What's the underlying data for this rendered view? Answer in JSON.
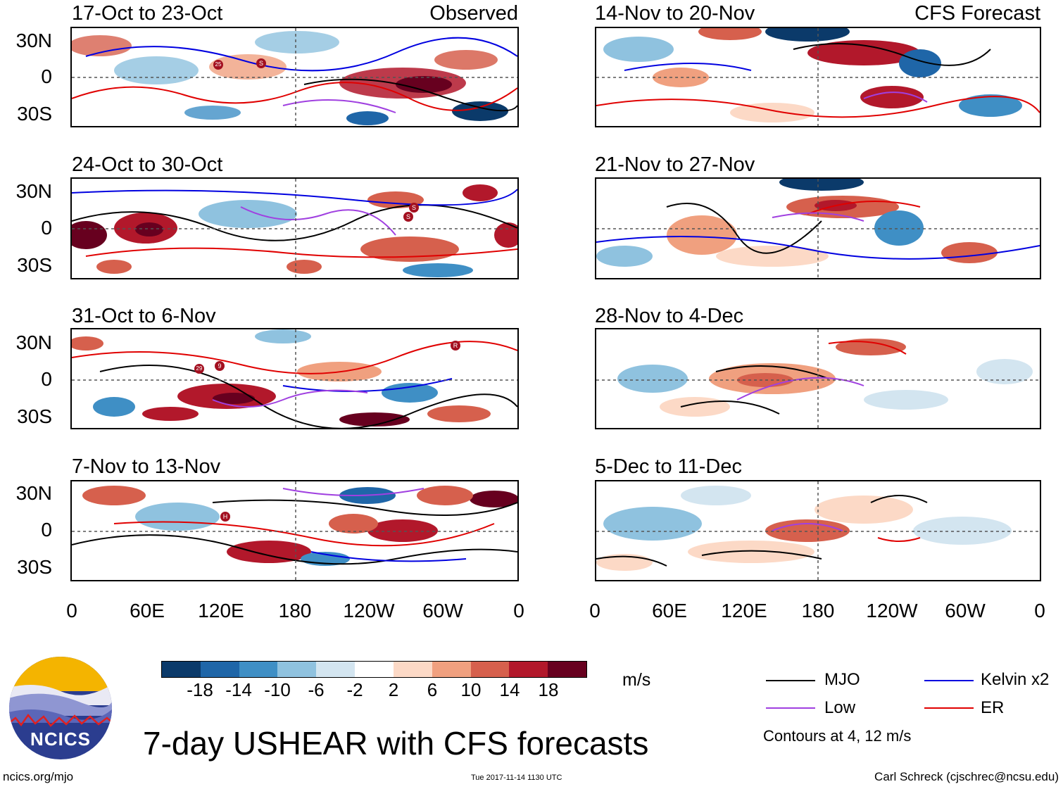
{
  "figure": {
    "title": "7-day USHEAR with CFS forecasts",
    "units": "m/s",
    "logo_text": "NCICS",
    "website": "ncics.org/mjo",
    "timestamp": "Tue 2017-11-14 1130 UTC",
    "author": "Carl Schreck (cjschrec@ncsu.edu)"
  },
  "columns": {
    "left": {
      "label": "Observed"
    },
    "right": {
      "label": "CFS Forecast"
    }
  },
  "panels": {
    "left": [
      {
        "title": "17-Oct to 23-Oct"
      },
      {
        "title": "24-Oct to 30-Oct"
      },
      {
        "title": "31-Oct to 6-Nov"
      },
      {
        "title": "7-Nov to 13-Nov"
      }
    ],
    "right": [
      {
        "title": "14-Nov to 20-Nov"
      },
      {
        "title": "21-Nov to 27-Nov"
      },
      {
        "title": "28-Nov to 4-Dec"
      },
      {
        "title": "5-Dec to 11-Dec"
      }
    ]
  },
  "axes": {
    "lat_labels": [
      "30N",
      "0",
      "30S"
    ],
    "lon_labels": [
      "0",
      "60E",
      "120E",
      "180",
      "120W",
      "60W",
      "0"
    ]
  },
  "colorbar": {
    "labels": [
      "-18",
      "-14",
      "-10",
      "-6",
      "-2",
      "2",
      "6",
      "10",
      "14",
      "18"
    ],
    "colors": [
      "#0b3a6a",
      "#1f66a8",
      "#3f8fc5",
      "#8fc2df",
      "#d3e5f0",
      "#ffffff",
      "#fcd9c6",
      "#f0a07f",
      "#d6604d",
      "#b2182b",
      "#67001f"
    ]
  },
  "legend": {
    "items": [
      {
        "name": "MJO",
        "color": "#000000"
      },
      {
        "name": "Kelvin x2",
        "color": "#0000e0"
      },
      {
        "name": "Low",
        "color": "#a040e0"
      },
      {
        "name": "ER",
        "color": "#e00000"
      }
    ],
    "note": "Contours at 4, 12 m/s"
  },
  "storm_markers": {
    "panel_l1": [
      "25",
      "S"
    ],
    "panel_l2": [
      "S",
      "S"
    ],
    "panel_l3": [
      "29",
      "9",
      "R"
    ],
    "panel_l4": [
      "H"
    ]
  }
}
